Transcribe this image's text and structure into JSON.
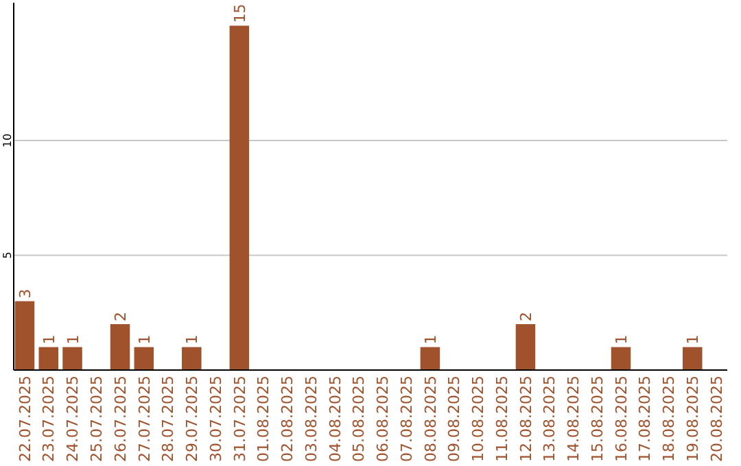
{
  "chart_data": {
    "type": "bar",
    "categories": [
      "22.07.2025",
      "23.07.2025",
      "24.07.2025",
      "25.07.2025",
      "26.07.2025",
      "27.07.2025",
      "28.07.2025",
      "29.07.2025",
      "30.07.2025",
      "31.07.2025",
      "01.08.2025",
      "02.08.2025",
      "03.08.2025",
      "04.08.2025",
      "05.08.2025",
      "06.08.2025",
      "07.08.2025",
      "08.08.2025",
      "09.08.2025",
      "10.08.2025",
      "11.08.2025",
      "12.08.2025",
      "13.08.2025",
      "14.08.2025",
      "15.08.2025",
      "16.08.2025",
      "17.08.2025",
      "18.08.2025",
      "19.08.2025",
      "20.08.2025"
    ],
    "values": [
      3,
      1,
      1,
      0,
      2,
      1,
      0,
      1,
      0,
      15,
      0,
      0,
      0,
      0,
      0,
      0,
      0,
      1,
      0,
      0,
      0,
      2,
      0,
      0,
      0,
      1,
      0,
      0,
      1,
      0
    ],
    "value_labels": [
      "3",
      "1",
      "1",
      null,
      "2",
      "1",
      null,
      "1",
      null,
      "15",
      null,
      null,
      null,
      null,
      null,
      null,
      null,
      "1",
      null,
      null,
      null,
      "2",
      null,
      null,
      null,
      "1",
      null,
      null,
      "1",
      null
    ],
    "color": "#a0522d",
    "ylim": [
      0,
      16
    ],
    "yticks": [
      5,
      10
    ],
    "grid": "y"
  }
}
